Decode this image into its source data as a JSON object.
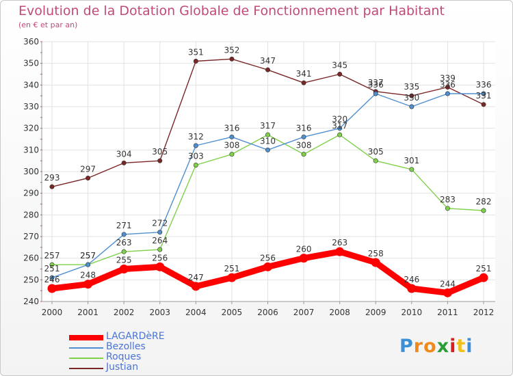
{
  "chart_data": {
    "type": "line",
    "title": "Evolution de la Dotation Globale de Fonctionnement par Habitant",
    "subtitle": "(en € et par an)",
    "x": [
      "2000",
      "2001",
      "2002",
      "2003",
      "2004",
      "2005",
      "2006",
      "2007",
      "2008",
      "2009",
      "2010",
      "2011",
      "2012"
    ],
    "ylim": [
      240,
      360
    ],
    "yticks": [
      240,
      250,
      260,
      270,
      280,
      290,
      300,
      310,
      320,
      330,
      340,
      350,
      360
    ],
    "grid": true,
    "legend_position": "bottom-left",
    "series": [
      {
        "name": "LAGARDèRE",
        "color": "#ff0000",
        "values": [
          246,
          248,
          255,
          256,
          247,
          251,
          256,
          260,
          263,
          258,
          246,
          244,
          251
        ]
      },
      {
        "name": "Bezolles",
        "color": "#4f8fcf",
        "values": [
          251,
          257,
          271,
          272,
          312,
          316,
          310,
          316,
          320,
          336,
          330,
          336,
          336
        ]
      },
      {
        "name": "Roques",
        "color": "#7fd14a",
        "values": [
          257,
          257,
          263,
          264,
          303,
          308,
          317,
          308,
          317,
          305,
          301,
          283,
          282
        ]
      },
      {
        "name": "Justian",
        "color": "#7a2626",
        "values": [
          293,
          297,
          304,
          305,
          351,
          352,
          347,
          341,
          345,
          337,
          335,
          339,
          331
        ]
      }
    ]
  },
  "logo": {
    "letters": [
      "P",
      "r",
      "o",
      "x",
      "i",
      "t",
      "i"
    ],
    "colors": [
      "#3a8fd6",
      "#f08a1c",
      "#f08a1c",
      "#2a9d3a",
      "#d62020",
      "#f0c01c",
      "#3a8fd6"
    ]
  }
}
